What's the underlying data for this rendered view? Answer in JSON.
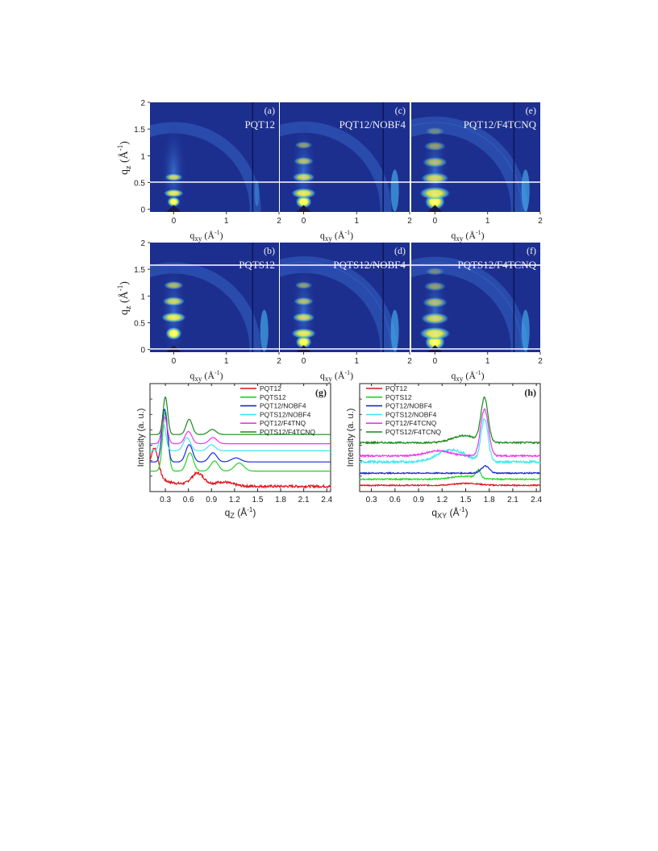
{
  "gixd_panels": [
    {
      "letter": "(a)",
      "sample": "PQT12",
      "row": 0,
      "col": 0,
      "reflections": [
        0.14,
        0.3,
        0.6
      ],
      "intensity": "low",
      "arcs": 1
    },
    {
      "letter": "(c)",
      "sample": "PQT12/NOBF4",
      "row": 0,
      "col": 1,
      "reflections": [
        0.14,
        0.3,
        0.6,
        0.9,
        1.2
      ],
      "intensity": "medium",
      "arcs": 1
    },
    {
      "letter": "(e)",
      "sample": "PQT12/F4TCNQ",
      "row": 0,
      "col": 2,
      "reflections": [
        0.14,
        0.3,
        0.58,
        0.88,
        1.18,
        1.46
      ],
      "intensity": "high",
      "arcs": 2
    },
    {
      "letter": "(b)",
      "sample": "PQTS12",
      "row": 1,
      "col": 0,
      "reflections": [
        0.3,
        0.6,
        0.9,
        1.2
      ],
      "intensity": "medium",
      "arcs": 1
    },
    {
      "letter": "(d)",
      "sample": "PQTS12/NOBF4",
      "row": 1,
      "col": 1,
      "reflections": [
        0.14,
        0.3,
        0.6,
        0.9,
        1.2
      ],
      "intensity": "medium",
      "arcs": 2
    },
    {
      "letter": "(f)",
      "sample": "PQTS12/F4TCNQ",
      "row": 1,
      "col": 2,
      "reflections": [
        0.14,
        0.3,
        0.58,
        0.88,
        1.18,
        1.46
      ],
      "intensity": "high",
      "arcs": 2
    }
  ],
  "gixd_axes": {
    "ylabel_main": "q",
    "ylabel_sub": "z",
    "ylabel_unit": " (Å",
    "ylabel_exp": "-1",
    "ylabel_close": ")",
    "xlabel_main": "q",
    "xlabel_sub": "xy",
    "xlabel_unit": " (Å",
    "xlabel_exp": "-1",
    "xlabel_close": ")",
    "y_ticks": [
      "2",
      "1.5",
      "1",
      "0.5",
      "0"
    ],
    "x_ticks": [
      "0",
      "1",
      "2"
    ]
  },
  "colors": {
    "background": "#1c2f8f",
    "speckle": "#2a48b8",
    "arc": "#3a6ed0",
    "bright": "#ffff40",
    "panel_gap": "#ffffff"
  },
  "chart_data": [
    {
      "type": "line",
      "letter": "(g)",
      "ylabel": "Intensity (a. u.)",
      "xlabel_main": "q",
      "xlabel_sub": "Z",
      "xlabel_unit": " (Å",
      "xlabel_exp": "-1",
      "xlabel_close": ")",
      "xlim": [
        0.1,
        2.45
      ],
      "ylim": [
        0,
        1
      ],
      "x_ticks": [
        "0.3",
        "0.6",
        "0.9",
        "1.2",
        "1.5",
        "1.8",
        "2.1",
        "2.4"
      ],
      "legend_position": "top-right",
      "series": [
        {
          "name": "PQT12",
          "color": "#e0121c",
          "offset": 0.02,
          "noise": 0.012,
          "peaks": [
            [
              0.16,
              0.28,
              0.05
            ],
            [
              0.72,
              0.12,
              0.08
            ],
            [
              1.05,
              0.04,
              0.12
            ]
          ],
          "decay": 0.12
        },
        {
          "name": "PQTS12",
          "color": "#22d422",
          "offset": 0.17,
          "noise": 0.0,
          "peaks": [
            [
              0.3,
              0.58,
              0.035
            ],
            [
              0.62,
              0.18,
              0.045
            ],
            [
              0.94,
              0.1,
              0.05
            ],
            [
              1.26,
              0.08,
              0.06
            ]
          ],
          "decay": 0.0
        },
        {
          "name": "PQT12/NOBF4",
          "color": "#1a28d8",
          "offset": 0.26,
          "noise": 0.0,
          "peaks": [
            [
              0.29,
              0.52,
              0.035
            ],
            [
              0.61,
              0.17,
              0.045
            ],
            [
              0.92,
              0.09,
              0.05
            ],
            [
              1.22,
              0.04,
              0.06
            ]
          ],
          "decay": 0.0
        },
        {
          "name": "PQTS12/NOBF4",
          "color": "#3fe6ee",
          "offset": 0.37,
          "noise": 0.0,
          "peaks": [
            [
              0.27,
              0.28,
              0.035
            ],
            [
              0.58,
              0.13,
              0.045
            ],
            [
              0.9,
              0.06,
              0.05
            ]
          ],
          "decay": 0.0
        },
        {
          "name": "PQT12/F4TNQ",
          "color": "#ee34ee",
          "offset": 0.44,
          "noise": 0.0,
          "peaks": [
            [
              0.29,
              0.26,
              0.035
            ],
            [
              0.6,
              0.12,
              0.045
            ],
            [
              0.92,
              0.06,
              0.05
            ]
          ],
          "decay": 0.0
        },
        {
          "name": "PQTS12/F4TCNQ",
          "color": "#1a8a1a",
          "offset": 0.53,
          "noise": 0.0,
          "peaks": [
            [
              0.3,
              0.37,
              0.03
            ],
            [
              0.61,
              0.15,
              0.04
            ],
            [
              0.91,
              0.05,
              0.05
            ]
          ],
          "decay": 0.0
        }
      ]
    },
    {
      "type": "line",
      "letter": "(h)",
      "ylabel": "Intensity (a. u.)",
      "xlabel_main": "q",
      "xlabel_sub": "XY",
      "xlabel_unit": " (Å",
      "xlabel_exp": "-1",
      "xlabel_close": ")",
      "xlim": [
        0.15,
        2.45
      ],
      "ylim": [
        0,
        1
      ],
      "x_ticks": [
        "0.3",
        "0.6",
        "0.9",
        "1.2",
        "1.5",
        "1.8",
        "2.1",
        "2.4"
      ],
      "legend_position": "top-left",
      "series": [
        {
          "name": "PQT12",
          "color": "#e0121c",
          "offset": 0.03,
          "noise": 0.006,
          "peaks": [
            [
              1.52,
              0.02,
              0.15
            ]
          ],
          "decay": 0.0
        },
        {
          "name": "PQTS12",
          "color": "#22d422",
          "offset": 0.09,
          "noise": 0.006,
          "peaks": [
            [
              1.48,
              0.03,
              0.15
            ],
            [
              1.66,
              0.08,
              0.03
            ]
          ],
          "decay": 0.0
        },
        {
          "name": "PQT12/NOBF4",
          "color": "#1a28d8",
          "offset": 0.15,
          "noise": 0.006,
          "peaks": [
            [
              1.75,
              0.07,
              0.05
            ]
          ],
          "decay": 0.0
        },
        {
          "name": "PQTS12/NOBF4",
          "color": "#3fe6ee",
          "offset": 0.26,
          "noise": 0.012,
          "peaks": [
            [
              1.32,
              0.12,
              0.18
            ],
            [
              1.74,
              0.42,
              0.045
            ]
          ],
          "decay": 0.0
        },
        {
          "name": "PQT12/F4TCNQ",
          "color": "#ee34ee",
          "offset": 0.32,
          "noise": 0.008,
          "peaks": [
            [
              1.15,
              0.05,
              0.15
            ],
            [
              1.74,
              0.46,
              0.05
            ]
          ],
          "decay": 0.0
        },
        {
          "name": "PQTS12/F4TCNQ",
          "color": "#1a8a1a",
          "offset": 0.45,
          "noise": 0.008,
          "peaks": [
            [
              1.48,
              0.07,
              0.15
            ],
            [
              1.74,
              0.43,
              0.045
            ]
          ],
          "decay": 0.0
        }
      ]
    }
  ]
}
